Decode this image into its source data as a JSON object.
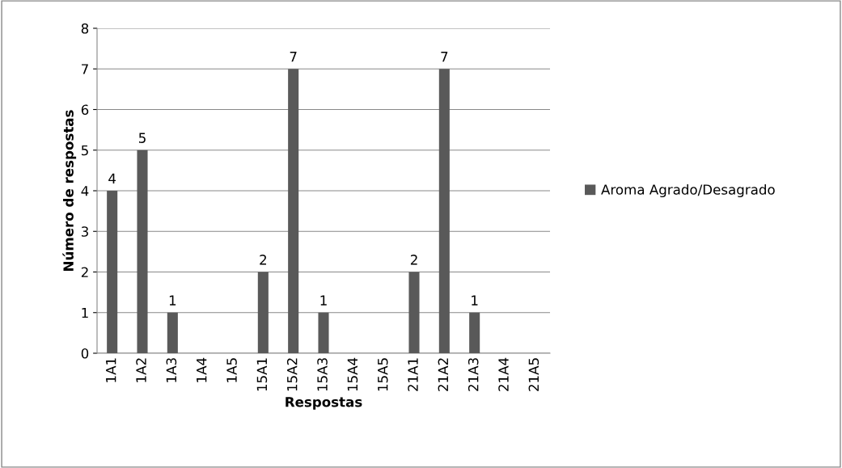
{
  "chart_data": {
    "type": "bar",
    "xlabel": "Respostas",
    "ylabel": "Número de respostas",
    "categories": [
      "1A1",
      "1A2",
      "1A3",
      "1A4",
      "1A5",
      "15A1",
      "15A2",
      "15A3",
      "15A4",
      "15A5",
      "21A1",
      "21A2",
      "21A3",
      "21A4",
      "21A5"
    ],
    "series": [
      {
        "name": "Aroma Agrado/Desagrado",
        "color": "#595959",
        "values": [
          4,
          5,
          1,
          0,
          0,
          2,
          7,
          1,
          0,
          0,
          2,
          7,
          1,
          0,
          0
        ],
        "value_labels": [
          "4",
          "5",
          "1",
          null,
          null,
          "2",
          "7",
          "1",
          null,
          null,
          "2",
          "7",
          "1",
          null,
          null
        ]
      }
    ],
    "ylim": [
      0,
      8
    ],
    "yticks": [
      0,
      1,
      2,
      3,
      4,
      5,
      6,
      7,
      8
    ],
    "grid": "y",
    "legend": "right"
  }
}
